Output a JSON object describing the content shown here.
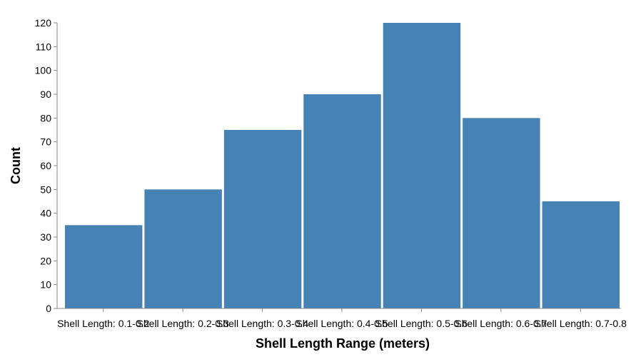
{
  "chart_data": {
    "type": "bar",
    "title": "",
    "xlabel": "Shell Length Range (meters)",
    "ylabel": "Count",
    "categories": [
      "Shell Length: 0.1-0.2",
      "Shell Length: 0.2-0.3",
      "Shell Length: 0.3-0.4",
      "Shell Length: 0.4-0.5",
      "Shell Length: 0.5-0.6",
      "Shell Length: 0.6-0.7",
      "Shell Length: 0.7-0.8"
    ],
    "values": [
      35,
      50,
      75,
      90,
      120,
      80,
      45
    ],
    "ylim": [
      0,
      120
    ],
    "yticks": [
      0,
      10,
      20,
      30,
      40,
      50,
      60,
      70,
      80,
      90,
      100,
      110,
      120
    ],
    "bar_color": "#4682b4",
    "grid": false
  }
}
